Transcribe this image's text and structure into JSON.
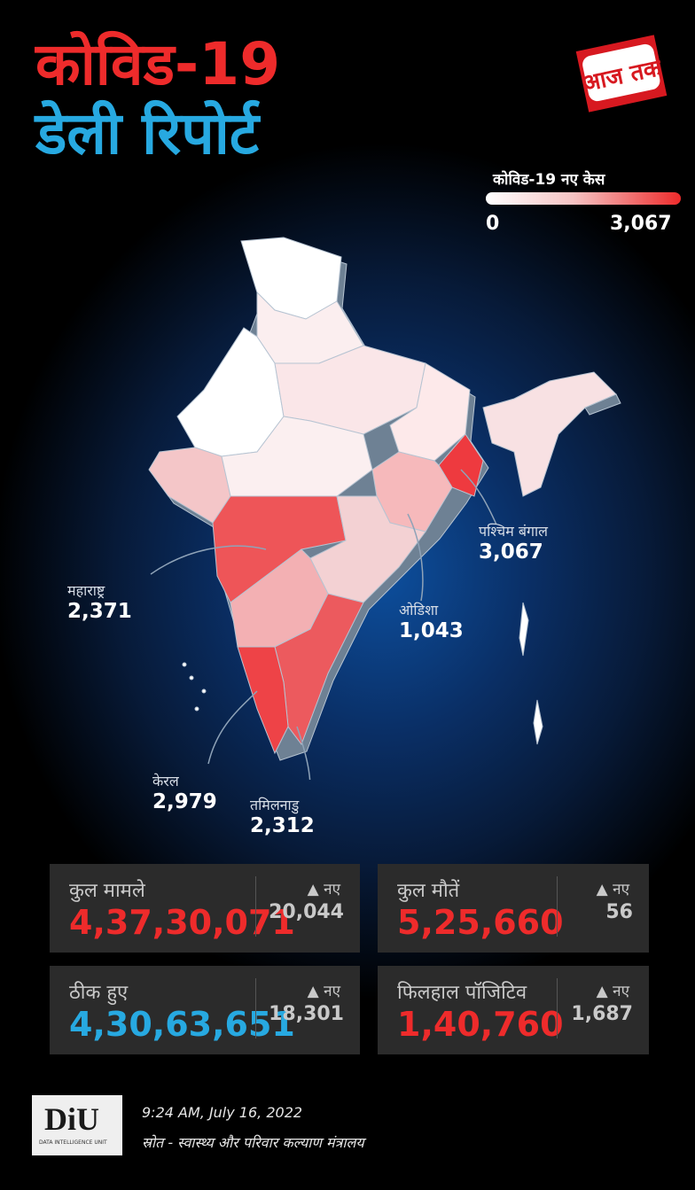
{
  "header": {
    "title_line1": "कोविड-19",
    "title_line2": "डेली रिपोर्ट",
    "logo_text": "आज तक"
  },
  "legend": {
    "title": "कोविड-19 नए केस",
    "min": "0",
    "max": "3,067",
    "color_low": "#ffffff",
    "color_high": "#ee2b2b"
  },
  "map": {
    "region": "India",
    "callouts": [
      {
        "name": "महाराष्ट्र",
        "value": "2,371"
      },
      {
        "name": "पश्चिम बंगाल",
        "value": "3,067"
      },
      {
        "name": "ओडिशा",
        "value": "1,043"
      },
      {
        "name": "केरल",
        "value": "2,979"
      },
      {
        "name": "तमिलनाडु",
        "value": "2,312"
      }
    ]
  },
  "stats": [
    {
      "label": "कुल मामले",
      "value": "4,37,30,071",
      "new_label": "नए",
      "new_value": "20,044",
      "color": "#ee2b2b"
    },
    {
      "label": "कुल मौतें",
      "value": "5,25,660",
      "new_label": "नए",
      "new_value": "56",
      "color": "#ee2b2b"
    },
    {
      "label": "ठीक हुए",
      "value": "4,30,63,651",
      "new_label": "नए",
      "new_value": "18,301",
      "color": "#27a9e1"
    },
    {
      "label": "फिलहाल पॉजिटिव",
      "value": "1,40,760",
      "new_label": "नए",
      "new_value": "1,687",
      "color": "#ee2b2b"
    }
  ],
  "footer": {
    "logo_text": "DiU",
    "logo_subtext": "DATA INTELLIGENCE UNIT",
    "timestamp": "9:24 AM, July 16, 2022",
    "source": "स्रोत - स्वास्थ्य और परिवार कल्याण मंत्रालय"
  }
}
